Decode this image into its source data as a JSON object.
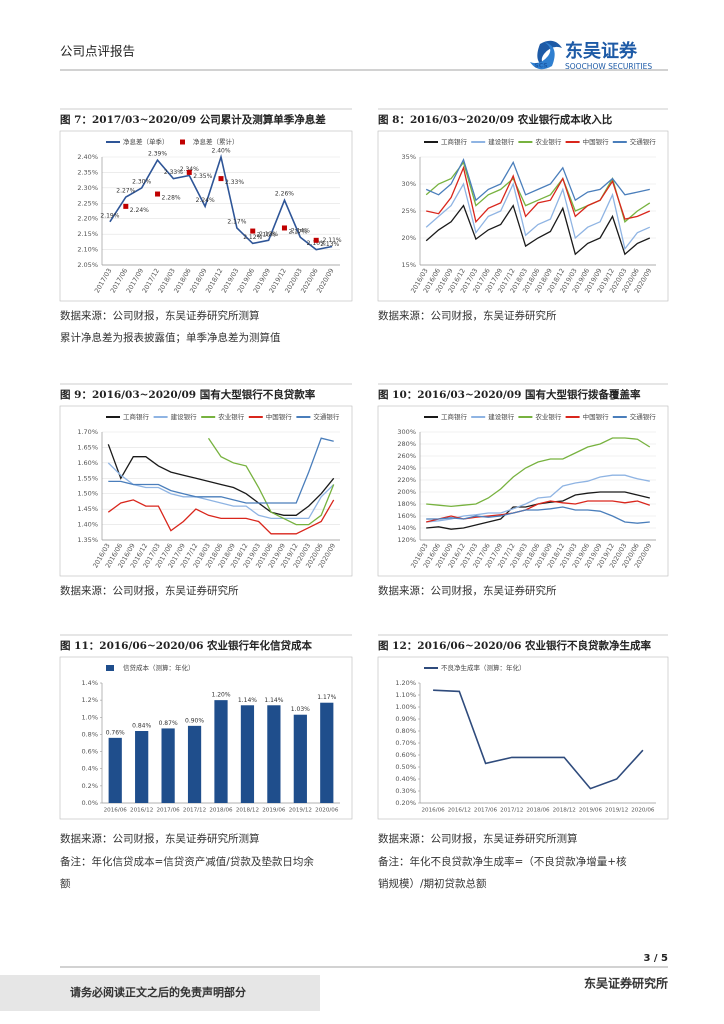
{
  "header": {
    "section": "公司点评报告",
    "logo_cn": "东吴证券",
    "logo_en": "SOOCHOW SECURITIES",
    "logo_abbr": "SCS"
  },
  "chart_data": [
    {
      "type": "line",
      "title": "图 7：2017/03~2020/09 公司累计及测算单季净息差",
      "grid": true,
      "categories": [
        "2017/03",
        "2017/06",
        "2017/09",
        "2017/12",
        "2018/03",
        "2018/06",
        "2018/09",
        "2018/12",
        "2019/03",
        "2019/06",
        "2019/09",
        "2019/12",
        "2020/03",
        "2020/06",
        "2020/09"
      ],
      "series": [
        {
          "name": "净息差（单季）",
          "color": "#2e5597",
          "mode": "line",
          "values": [
            2.19,
            2.27,
            2.3,
            2.39,
            2.33,
            2.34,
            2.24,
            2.4,
            2.17,
            2.12,
            2.13,
            2.26,
            2.14,
            2.1,
            2.11
          ],
          "value_labels": [
            "2.19%",
            "2.27%",
            "2.30%",
            "2.39%",
            "2.33%",
            "2.34%",
            "2.24%",
            "2.40%",
            "2.17%",
            "2.12%",
            "2.13%",
            "2.26%",
            "2.14%",
            "2.10%",
            "2.11%"
          ]
        },
        {
          "name": "净息差（累计）",
          "color": "#c00000",
          "mode": "markers",
          "values": [
            null,
            2.24,
            null,
            2.28,
            null,
            2.35,
            null,
            2.33,
            null,
            2.16,
            null,
            2.17,
            null,
            2.13,
            null
          ],
          "value_labels": [
            null,
            "2.24%",
            null,
            "2.28%",
            null,
            "2.35%",
            null,
            "2.33%",
            null,
            "2.16%",
            null,
            "2.17%",
            null,
            "2.13%",
            null
          ]
        }
      ],
      "ylim": [
        2.05,
        2.4
      ],
      "yticks": [
        {
          "value": 2.05,
          "label": "2.05%"
        },
        {
          "value": 2.1,
          "label": "2.10%"
        },
        {
          "value": 2.15,
          "label": "2.15%"
        },
        {
          "value": 2.2,
          "label": "2.20%"
        },
        {
          "value": 2.25,
          "label": "2.25%"
        },
        {
          "value": 2.3,
          "label": "2.30%"
        },
        {
          "value": 2.35,
          "label": "2.35%"
        },
        {
          "value": 2.4,
          "label": "2.40%"
        }
      ]
    },
    {
      "type": "line",
      "title": "图 8：2016/03~2020/09 农业银行成本收入比",
      "grid": true,
      "categories": [
        "2016/03",
        "2016/06",
        "2016/09",
        "2016/12",
        "2017/03",
        "2017/06",
        "2017/09",
        "2017/12",
        "2018/03",
        "2018/06",
        "2018/09",
        "2018/12",
        "2019/03",
        "2019/06",
        "2019/09",
        "2019/12",
        "2020/03",
        "2020/06",
        "2020/09"
      ],
      "series": [
        {
          "name": "工商银行",
          "color": "#1a1a1a",
          "values": [
            19.5,
            21.5,
            23,
            26,
            19.8,
            21.5,
            22.5,
            26,
            18.5,
            20,
            21.2,
            25.5,
            17,
            19,
            20,
            24,
            17,
            19,
            20
          ]
        },
        {
          "name": "建设银行",
          "color": "#8fb4e3",
          "values": [
            22,
            24,
            26,
            30,
            21,
            24,
            25,
            30,
            20.5,
            22.5,
            23.5,
            29,
            20,
            22,
            23,
            28,
            18,
            21,
            22
          ]
        },
        {
          "name": "农业银行",
          "color": "#77b23f",
          "values": [
            28,
            30,
            31,
            34,
            26,
            28,
            29,
            31,
            26,
            27,
            28,
            31,
            25,
            26,
            27,
            31,
            23,
            25,
            26.5
          ]
        },
        {
          "name": "中国银行",
          "color": "#d9261c",
          "values": [
            25,
            24.5,
            27.5,
            33,
            23,
            25.5,
            26.5,
            31.5,
            24,
            26.5,
            27,
            31,
            24,
            26,
            27,
            30.5,
            23.5,
            24,
            25
          ]
        },
        {
          "name": "交通银行",
          "color": "#4a7ebb",
          "values": [
            29,
            28,
            30,
            34.5,
            27,
            29,
            30,
            34,
            28,
            29,
            30,
            33,
            27,
            28.5,
            29,
            31,
            28,
            28.5,
            29
          ]
        }
      ],
      "ylim": [
        15,
        35
      ],
      "yticks": [
        {
          "value": 15,
          "label": "15%"
        },
        {
          "value": 20,
          "label": "20%"
        },
        {
          "value": 25,
          "label": "25%"
        },
        {
          "value": 30,
          "label": "30%"
        },
        {
          "value": 35,
          "label": "35%"
        }
      ]
    },
    {
      "type": "line",
      "title": "图 9：2016/03~2020/09 国有大型银行不良贷款率",
      "grid": true,
      "categories": [
        "2016/03",
        "2016/06",
        "2016/09",
        "2016/12",
        "2017/03",
        "2017/06",
        "2017/09",
        "2017/12",
        "2018/03",
        "2018/06",
        "2018/09",
        "2018/12",
        "2019/03",
        "2019/06",
        "2019/09",
        "2019/12",
        "2020/03",
        "2020/06",
        "2020/09"
      ],
      "series": [
        {
          "name": "工商银行",
          "color": "#1a1a1a",
          "values": [
            1.66,
            1.55,
            1.62,
            1.62,
            1.59,
            1.57,
            1.56,
            1.55,
            1.54,
            1.53,
            1.52,
            1.5,
            1.47,
            1.44,
            1.43,
            1.43,
            1.46,
            1.5,
            1.55
          ]
        },
        {
          "name": "建设银行",
          "color": "#8fb4e3",
          "values": [
            1.6,
            1.56,
            1.53,
            1.52,
            1.52,
            1.5,
            1.49,
            1.49,
            1.48,
            1.47,
            1.46,
            1.46,
            1.43,
            1.42,
            1.42,
            1.42,
            1.42,
            1.49,
            1.53
          ]
        },
        {
          "name": "农业银行",
          "color": "#77b23f",
          "values": [
            null,
            null,
            null,
            null,
            null,
            null,
            null,
            null,
            1.68,
            1.62,
            1.6,
            1.59,
            1.52,
            1.44,
            1.42,
            1.4,
            1.4,
            1.43,
            1.53
          ]
        },
        {
          "name": "中国银行",
          "color": "#d9261c",
          "values": [
            1.44,
            1.47,
            1.48,
            1.46,
            1.46,
            1.38,
            1.41,
            1.45,
            1.43,
            1.42,
            1.42,
            1.42,
            1.41,
            1.37,
            1.37,
            1.37,
            1.39,
            1.41,
            1.48
          ]
        },
        {
          "name": "交通银行",
          "color": "#4a7ebb",
          "values": [
            1.54,
            1.54,
            1.53,
            1.53,
            1.53,
            1.51,
            1.5,
            1.49,
            1.49,
            1.49,
            1.48,
            1.47,
            1.47,
            1.47,
            1.47,
            1.47,
            1.57,
            1.68,
            1.67
          ]
        }
      ],
      "ylim": [
        1.35,
        1.7
      ],
      "yticks": [
        {
          "value": 1.35,
          "label": "1.35%"
        },
        {
          "value": 1.4,
          "label": "1.40%"
        },
        {
          "value": 1.45,
          "label": "1.45%"
        },
        {
          "value": 1.5,
          "label": "1.50%"
        },
        {
          "value": 1.55,
          "label": "1.55%"
        },
        {
          "value": 1.6,
          "label": "1.60%"
        },
        {
          "value": 1.65,
          "label": "1.65%"
        },
        {
          "value": 1.7,
          "label": "1.70%"
        }
      ]
    },
    {
      "type": "line",
      "title": "图 10：2016/03~2020/09 国有大型银行拨备覆盖率",
      "grid": true,
      "categories": [
        "2016/03",
        "2016/06",
        "2016/09",
        "2016/12",
        "2017/03",
        "2017/06",
        "2017/09",
        "2017/12",
        "2018/03",
        "2018/06",
        "2018/09",
        "2018/12",
        "2019/03",
        "2019/06",
        "2019/09",
        "2019/12",
        "2020/03",
        "2020/06",
        "2020/09"
      ],
      "series": [
        {
          "name": "工商银行",
          "color": "#1a1a1a",
          "values": [
            140,
            142,
            138,
            140,
            145,
            150,
            155,
            175,
            175,
            180,
            183,
            185,
            195,
            198,
            200,
            200,
            200,
            195,
            190
          ]
        },
        {
          "name": "建设银行",
          "color": "#8fb4e3",
          "values": [
            150,
            152,
            155,
            160,
            162,
            165,
            165,
            172,
            180,
            190,
            192,
            210,
            215,
            218,
            225,
            228,
            228,
            222,
            218
          ]
        },
        {
          "name": "农业银行",
          "color": "#77b23f",
          "values": [
            180,
            178,
            176,
            178,
            180,
            190,
            205,
            225,
            240,
            250,
            255,
            255,
            265,
            275,
            280,
            290,
            290,
            288,
            275
          ]
        },
        {
          "name": "中国银行",
          "color": "#d9261c",
          "values": [
            150,
            155,
            160,
            155,
            158,
            160,
            162,
            165,
            170,
            180,
            185,
            182,
            180,
            185,
            185,
            185,
            182,
            185,
            178
          ]
        },
        {
          "name": "交通银行",
          "color": "#4a7ebb",
          "values": [
            155,
            155,
            157,
            155,
            160,
            158,
            160,
            165,
            170,
            170,
            172,
            175,
            170,
            170,
            168,
            160,
            150,
            148,
            150
          ]
        }
      ],
      "ylim": [
        120,
        300
      ],
      "yticks": [
        {
          "value": 120,
          "label": "120%"
        },
        {
          "value": 140,
          "label": "140%"
        },
        {
          "value": 160,
          "label": "160%"
        },
        {
          "value": 180,
          "label": "180%"
        },
        {
          "value": 200,
          "label": "200%"
        },
        {
          "value": 220,
          "label": "220%"
        },
        {
          "value": 240,
          "label": "240%"
        },
        {
          "value": 260,
          "label": "260%"
        },
        {
          "value": 280,
          "label": "280%"
        },
        {
          "value": 300,
          "label": "300%"
        }
      ]
    },
    {
      "type": "bar",
      "title": "图 11：2016/06~2020/06 农业银行年化信贷成本",
      "grid": false,
      "categories": [
        "2016/06",
        "2016/12",
        "2017/06",
        "2017/12",
        "2018/06",
        "2018/12",
        "2019/06",
        "2019/12",
        "2020/06"
      ],
      "series": [
        {
          "name": "信贷成本（测算：年化）",
          "color": "#1f4e8c",
          "values": [
            0.76,
            0.84,
            0.87,
            0.9,
            1.2,
            1.14,
            1.14,
            1.03,
            1.17
          ],
          "value_labels": [
            "0.76%",
            "0.84%",
            "0.87%",
            "0.90%",
            "1.20%",
            "1.14%",
            "1.14%",
            "1.03%",
            "1.17%"
          ]
        }
      ],
      "ylim": [
        0,
        1.4
      ],
      "yticks": [
        {
          "value": 0,
          "label": "0.0%"
        },
        {
          "value": 0.2,
          "label": "0.2%"
        },
        {
          "value": 0.4,
          "label": "0.4%"
        },
        {
          "value": 0.6,
          "label": "0.6%"
        },
        {
          "value": 0.8,
          "label": "0.8%"
        },
        {
          "value": 1.0,
          "label": "1.0%"
        },
        {
          "value": 1.2,
          "label": "1.2%"
        },
        {
          "value": 1.4,
          "label": "1.4%"
        }
      ]
    },
    {
      "type": "line",
      "title": "图 12：2016/06~2020/06 农业银行不良贷款净生成率",
      "grid": false,
      "categories": [
        "2016/06",
        "2016/12",
        "2017/06",
        "2017/12",
        "2018/06",
        "2018/12",
        "2019/06",
        "2019/12",
        "2020/06"
      ],
      "series": [
        {
          "name": "不良净生成率（测算：年化）",
          "color": "#2f4b7c",
          "values": [
            1.14,
            1.13,
            0.53,
            0.58,
            0.58,
            0.58,
            0.32,
            0.4,
            0.64
          ]
        }
      ],
      "ylim": [
        0.2,
        1.2
      ],
      "yticks": [
        {
          "value": 0.2,
          "label": "0.20%"
        },
        {
          "value": 0.3,
          "label": "0.30%"
        },
        {
          "value": 0.4,
          "label": "0.40%"
        },
        {
          "value": 0.5,
          "label": "0.50%"
        },
        {
          "value": 0.6,
          "label": "0.60%"
        },
        {
          "value": 0.7,
          "label": "0.70%"
        },
        {
          "value": 0.8,
          "label": "0.80%"
        },
        {
          "value": 0.9,
          "label": "0.90%"
        },
        {
          "value": 1.0,
          "label": "1.00%"
        },
        {
          "value": 1.1,
          "label": "1.10%"
        },
        {
          "value": 1.2,
          "label": "1.20%"
        }
      ]
    }
  ],
  "notes": [
    {
      "source": "数据来源：公司财报，东吴证券研究所测算",
      "note": "累计净息差为报表披露值；单季净息差为测算值"
    },
    {
      "source": "数据来源：公司财报，东吴证券研究所"
    },
    {
      "source": "数据来源：公司财报，东吴证券研究所"
    },
    {
      "source": "数据来源：公司财报，东吴证券研究所"
    },
    {
      "source": "数据来源：公司财报，东吴证券研究所测算",
      "note_lines": [
        "备注：年化信贷成本=信贷资产减值/贷款及垫款日均余",
        "额"
      ]
    },
    {
      "source": "数据来源：公司财报，东吴证券研究所测算",
      "note_lines": [
        "备注：年化不良贷款净生成率=（不良贷款净增量+核",
        "销规模）/期初贷款总额"
      ]
    }
  ],
  "footer": {
    "page": "3 / 5",
    "disclaimer": "请务必阅读正文之后的免责声明部分",
    "org": "东吴证券研究所"
  }
}
